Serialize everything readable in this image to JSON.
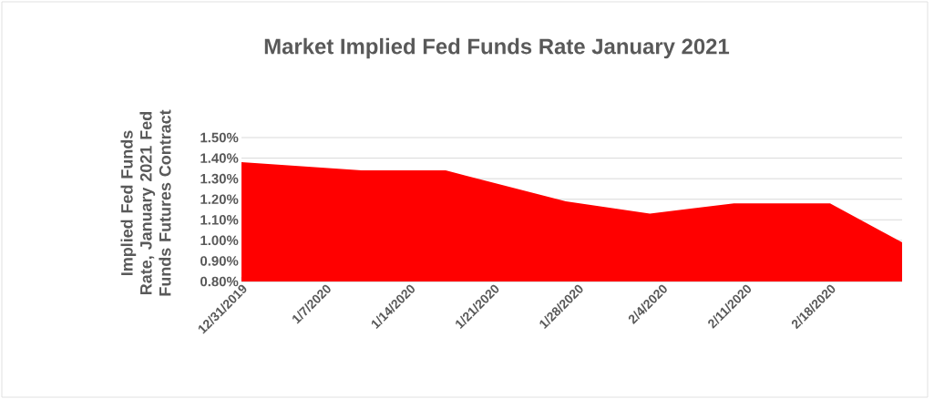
{
  "chart_data": {
    "type": "area",
    "title": "Market Implied Fed Funds Rate January 2021",
    "ylabel": "Implied Fed Funds Rate, January 2021 Fed Funds Futures Contract",
    "x": [
      "2019-12-31",
      "2020-01-10",
      "2020-01-17",
      "2020-01-27",
      "2020-02-03",
      "2020-02-10",
      "2020-02-18",
      "2020-02-24"
    ],
    "series": [
      {
        "color": "#ff0000",
        "values": [
          1.38,
          1.34,
          1.34,
          1.19,
          1.13,
          1.18,
          1.18,
          0.99
        ]
      }
    ],
    "xlim": [
      "2019-12-31",
      "2020-02-24"
    ],
    "xticks": [
      {
        "value": "2019-12-31",
        "label": "12/31/2019"
      },
      {
        "value": "2020-01-07",
        "label": "1/7/2020"
      },
      {
        "value": "2020-01-14",
        "label": "1/14/2020"
      },
      {
        "value": "2020-01-21",
        "label": "1/21/2020"
      },
      {
        "value": "2020-01-28",
        "label": "1/28/2020"
      },
      {
        "value": "2020-02-04",
        "label": "2/4/2020"
      },
      {
        "value": "2020-02-11",
        "label": "2/11/2020"
      },
      {
        "value": "2020-02-18",
        "label": "2/18/2020"
      }
    ],
    "ylim": [
      0.8,
      1.5
    ],
    "yticks": [
      {
        "value": 0.8,
        "label": "0.80%"
      },
      {
        "value": 0.9,
        "label": "0.90%"
      },
      {
        "value": 1.0,
        "label": "1.00%"
      },
      {
        "value": 1.1,
        "label": "1.10%"
      },
      {
        "value": 1.2,
        "label": "1.20%"
      },
      {
        "value": 1.3,
        "label": "1.30%"
      },
      {
        "value": 1.4,
        "label": "1.40%"
      },
      {
        "value": 1.5,
        "label": "1.50%"
      }
    ],
    "grid": "y"
  }
}
